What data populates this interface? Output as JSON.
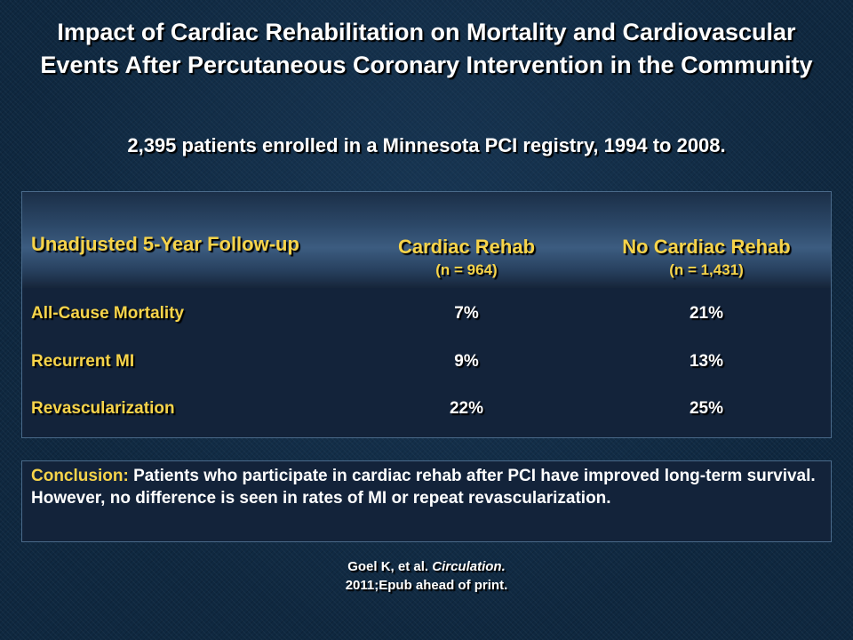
{
  "title": "Impact of Cardiac Rehabilitation on Mortality and Cardiovascular Events After Percutaneous Coronary Intervention in the Community",
  "subtitle": "2,395 patients enrolled in a Minnesota PCI registry, 1994 to 2008.",
  "table": {
    "header_left": "Unadjusted 5-Year Follow-up",
    "columns": [
      {
        "name": "Cardiac Rehab",
        "n": "(n = 964)"
      },
      {
        "name": "No Cardiac Rehab",
        "n": "(n = 1,431)"
      }
    ],
    "rows": [
      {
        "label": "All-Cause Mortality",
        "values": [
          "7%",
          "21%"
        ]
      },
      {
        "label": "Recurrent MI",
        "values": [
          "9%",
          "13%"
        ]
      },
      {
        "label": "Revascularization",
        "values": [
          "22%",
          "25%"
        ]
      }
    ]
  },
  "conclusion": {
    "label": "Conclusion:",
    "text": "Patients who participate in cardiac rehab after PCI have improved long-term survival. However, no difference is seen in rates of MI or repeat revascularization."
  },
  "citation": {
    "authors": "Goel K, et al.",
    "journal": "Circulation.",
    "details": "2011;Epub ahead of print."
  },
  "colors": {
    "accent_yellow": "#f7d44a",
    "background": "#0f2840",
    "panel": "#13233a"
  }
}
